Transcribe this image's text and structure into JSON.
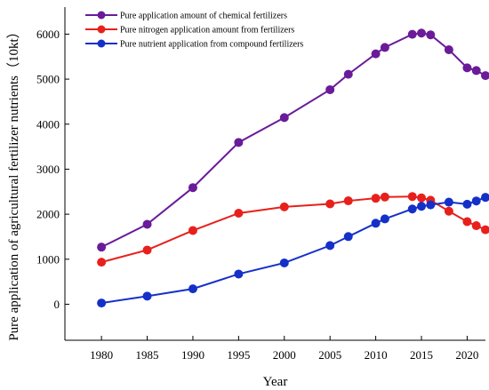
{
  "chart_data": {
    "type": "line",
    "title": "",
    "xlabel": "Year",
    "ylabel": "Pure application of agricultural fertilizer nutrients（10kt）",
    "xlim": [
      1976,
      2022
    ],
    "ylim": [
      -800,
      6600
    ],
    "xticks": [
      1980,
      1985,
      1990,
      1995,
      2000,
      2005,
      2010,
      2015,
      2020
    ],
    "yticks": [
      0,
      1000,
      2000,
      3000,
      4000,
      5000,
      6000
    ],
    "grid": false,
    "legend_position": "top-left",
    "series": [
      {
        "name": "Pure application amount of chemical fertilizers",
        "color": "#6a1b9a",
        "points": [
          [
            1980,
            1269
          ],
          [
            1985,
            1776
          ],
          [
            1990,
            2590
          ],
          [
            1995,
            3594
          ],
          [
            2000,
            4146
          ],
          [
            2005,
            4766
          ],
          [
            2007,
            5108
          ],
          [
            2010,
            5562
          ],
          [
            2011,
            5704
          ],
          [
            2014,
            5996
          ],
          [
            2015,
            6023
          ],
          [
            2016,
            5984
          ],
          [
            2018,
            5653
          ],
          [
            2020,
            5251
          ],
          [
            2021,
            5191
          ],
          [
            2022,
            5079
          ]
        ]
      },
      {
        "name": "Pure nitrogen application amount from fertilizers",
        "color": "#e8201c",
        "points": [
          [
            1980,
            934
          ],
          [
            1985,
            1204
          ],
          [
            1990,
            1638
          ],
          [
            1995,
            2022
          ],
          [
            2000,
            2162
          ],
          [
            2005,
            2229
          ],
          [
            2007,
            2297
          ],
          [
            2010,
            2354
          ],
          [
            2011,
            2381
          ],
          [
            2014,
            2393
          ],
          [
            2015,
            2362
          ],
          [
            2016,
            2310
          ],
          [
            2018,
            2066
          ],
          [
            2020,
            1834
          ],
          [
            2021,
            1745
          ],
          [
            2022,
            1654
          ]
        ]
      },
      {
        "name": "Pure nutrient application from compound fertilizers",
        "color": "#1530c8",
        "points": [
          [
            1980,
            27
          ],
          [
            1985,
            180
          ],
          [
            1990,
            342
          ],
          [
            1995,
            671
          ],
          [
            2000,
            918
          ],
          [
            2005,
            1304
          ],
          [
            2007,
            1503
          ],
          [
            2010,
            1799
          ],
          [
            2011,
            1895
          ],
          [
            2014,
            2116
          ],
          [
            2015,
            2176
          ],
          [
            2016,
            2207
          ],
          [
            2018,
            2268
          ],
          [
            2020,
            2222
          ],
          [
            2021,
            2294
          ],
          [
            2022,
            2374
          ]
        ]
      }
    ]
  }
}
